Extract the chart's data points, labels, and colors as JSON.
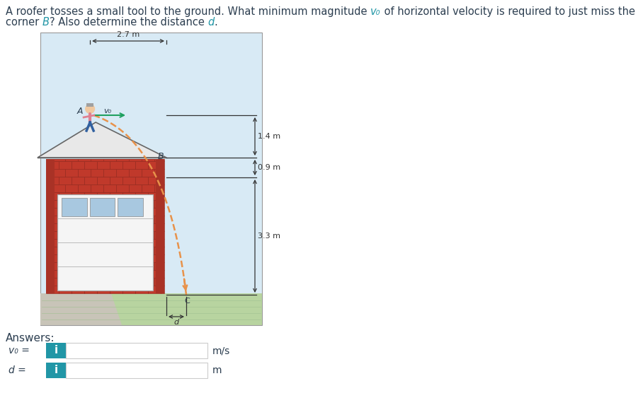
{
  "title_color": "#2c3e50",
  "highlight_color": "#2196a6",
  "answers_label": "Answers:",
  "v0_label": "v₀ =",
  "d_label": "d =",
  "unit_v0": "m/s",
  "unit_d": "m",
  "dim_27": "2.7 m",
  "dim_14": "1.4 m",
  "dim_09": "0.9 m",
  "dim_33": "3.3 m",
  "label_A": "A",
  "label_B": "B",
  "label_v0": "v₀",
  "label_d": "d",
  "label_C": "C",
  "bg_color": "#ffffff",
  "diagram_bg": "#d8eaf5",
  "ground_color": "#b8d4a0",
  "brick_red": "#c0392b",
  "brick_dark": "#922b21",
  "roof_color": "#e8e8e8",
  "roof_edge": "#666666",
  "trajectory_color": "#e8924a",
  "dim_color": "#333333",
  "blue_btn_color": "#2196a6",
  "text_color": "#333333",
  "garage_white": "#f5f5f5",
  "win_color": "#a8c8e0"
}
